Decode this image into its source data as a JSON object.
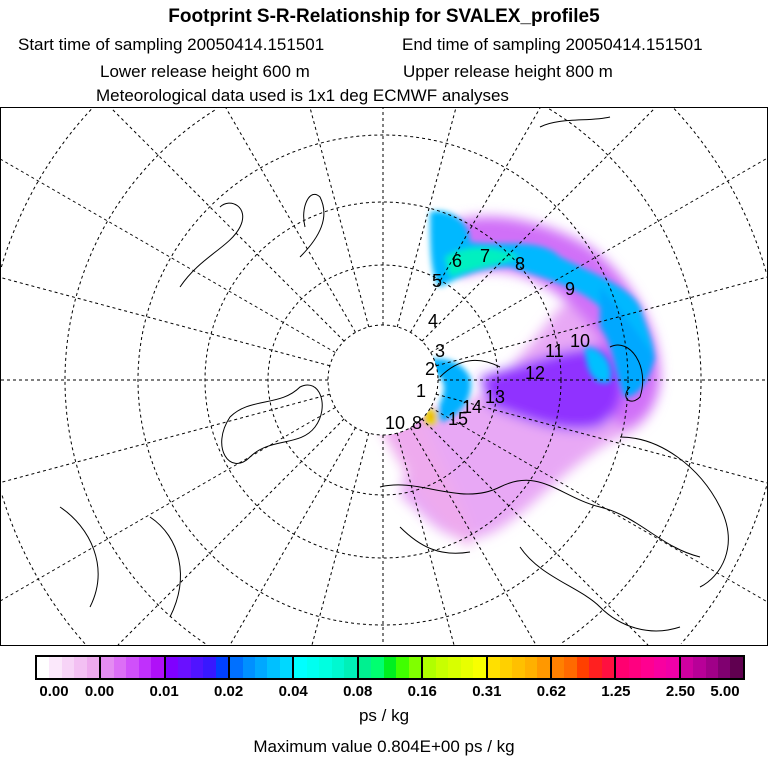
{
  "header": {
    "title": "Footprint S-R-Relationship for SVALEX_profile5",
    "start_time": "Start time of sampling 20050414.151501",
    "end_time": "End time of sampling 20050414.151501",
    "lower_height": "Lower release height  600 m",
    "upper_height": "Upper release height  800 m",
    "met_data": "Meteorological data used is 1x1 deg ECMWF analyses"
  },
  "map": {
    "day_labels": [
      "1",
      "2",
      "3",
      "4",
      "5",
      "6",
      "7",
      "8",
      "9",
      "10",
      "11",
      "12",
      "13",
      "14",
      "15",
      "10",
      "8"
    ]
  },
  "colorbar": {
    "labels": [
      "0.00",
      "0.00",
      "0.01",
      "0.02",
      "0.04",
      "0.08",
      "0.16",
      "0.31",
      "0.62",
      "1.25",
      "2.50",
      "5.00"
    ],
    "unit": "ps / kg",
    "segments": [
      [
        "#ffffff",
        "#fbe8fb",
        "#f7d4f7",
        "#f3c0f3",
        "#eeaaee"
      ],
      [
        "#e48cf2",
        "#dc6ef6",
        "#d050fa",
        "#c030fc",
        "#b010f8"
      ],
      [
        "#8000ff",
        "#6a10ff",
        "#5014ff",
        "#3818ff",
        "#0040ff"
      ],
      [
        "#0070ff",
        "#0090ff",
        "#00a8ff",
        "#00c0ff",
        "#00d8ff"
      ],
      [
        "#00ffff",
        "#00fff0",
        "#00ffe0",
        "#00f8d0",
        "#00f0b8"
      ],
      [
        "#00f090",
        "#00ff70",
        "#00f020",
        "#40ff00",
        "#80ff00"
      ],
      [
        "#b0ff00",
        "#c8ff00",
        "#d8ff00",
        "#e8ff00",
        "#f8ff00"
      ],
      [
        "#ffe000",
        "#ffd000",
        "#ffc000",
        "#ffb000",
        "#ff9800"
      ],
      [
        "#ff8000",
        "#ff6a00",
        "#ff4000",
        "#ff2020",
        "#ff1040"
      ],
      [
        "#ff0070",
        "#ff0080",
        "#ff0090",
        "#f800a0",
        "#f000a8"
      ],
      [
        "#d000a0",
        "#b80098",
        "#a00088",
        "#800070",
        "#600050"
      ]
    ]
  },
  "footer": {
    "max_value": "Maximum value  0.804E+00 ps / kg"
  }
}
